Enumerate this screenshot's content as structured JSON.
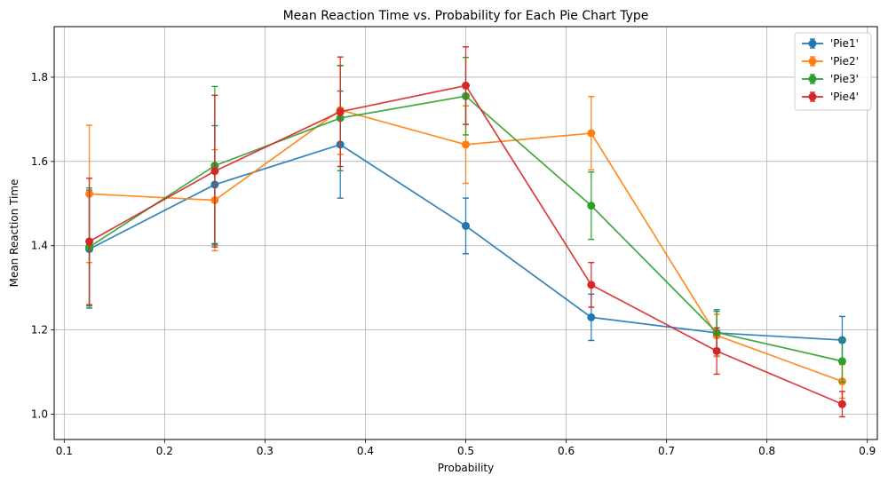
{
  "chart_data": {
    "type": "line",
    "title": "Mean Reaction Time vs. Probability for Each Pie Chart Type",
    "xlabel": "Probability",
    "ylabel": "Mean Reaction Time",
    "xlim": [
      0.09,
      0.91
    ],
    "ylim": [
      0.94,
      1.92
    ],
    "xticks": [
      0.1,
      0.2,
      0.3,
      0.4,
      0.5,
      0.6,
      0.7,
      0.8,
      0.9
    ],
    "xtick_labels": [
      "0.1",
      "0.2",
      "0.3",
      "0.4",
      "0.5",
      "0.6",
      "0.7",
      "0.8",
      "0.9"
    ],
    "yticks": [
      1.0,
      1.2,
      1.4,
      1.6,
      1.8
    ],
    "ytick_labels": [
      "1.0",
      "1.2",
      "1.4",
      "1.6",
      "1.8"
    ],
    "grid": true,
    "legend_position": "top-right",
    "x": [
      0.125,
      0.25,
      0.375,
      0.5,
      0.625,
      0.75,
      0.875
    ],
    "series": [
      {
        "name": "'Pie1'",
        "color": "#1f77b4",
        "values": [
          1.392,
          1.545,
          1.64,
          1.447,
          1.23,
          1.193,
          1.176
        ],
        "errors": [
          0.14,
          0.14,
          0.127,
          0.066,
          0.055,
          0.055,
          0.056
        ]
      },
      {
        "name": "'Pie2'",
        "color": "#ff7f0e",
        "values": [
          1.523,
          1.508,
          1.722,
          1.64,
          1.667,
          1.187,
          1.078
        ],
        "errors": [
          0.163,
          0.12,
          0.105,
          0.092,
          0.087,
          0.05,
          0.04
        ]
      },
      {
        "name": "'Pie3'",
        "color": "#2ca02c",
        "values": [
          1.397,
          1.59,
          1.703,
          1.755,
          1.495,
          1.194,
          1.126
        ],
        "errors": [
          0.14,
          0.188,
          0.125,
          0.092,
          0.08,
          0.05,
          0.05
        ]
      },
      {
        "name": "'Pie4'",
        "color": "#d62728",
        "values": [
          1.41,
          1.577,
          1.718,
          1.78,
          1.307,
          1.15,
          1.024
        ],
        "errors": [
          0.15,
          0.18,
          0.13,
          0.092,
          0.053,
          0.055,
          0.03
        ]
      }
    ]
  }
}
